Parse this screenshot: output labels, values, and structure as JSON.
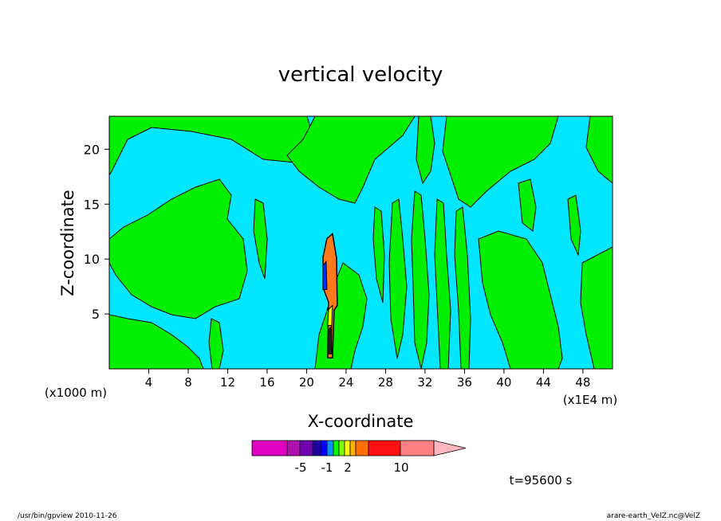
{
  "chart_data": {
    "type": "heatmap",
    "title": "vertical velocity",
    "xlabel": "X-coordinate",
    "ylabel": "Z-coordinate",
    "x_unit_left": "(x1000 m)",
    "x_unit_right": "(x1E4 m)",
    "xlim": [
      0,
      51
    ],
    "ylim": [
      0,
      23
    ],
    "xticks": [
      4,
      8,
      12,
      16,
      20,
      24,
      28,
      32,
      36,
      40,
      44,
      48
    ],
    "yticks": [
      5,
      10,
      15,
      20
    ],
    "updraft_core": {
      "x": 22.3,
      "z_bottom": 1,
      "z_top": 12.3
    },
    "colorbar": {
      "levels": [
        -10,
        -7,
        -5,
        -4,
        -3,
        -2,
        -1,
        -0.5,
        0,
        0.5,
        1,
        2,
        4,
        7,
        10,
        13,
        17
      ],
      "tick_labels": [
        "-5",
        "-1",
        "2",
        "10"
      ],
      "tick_values": [
        -5,
        -1,
        2,
        10
      ],
      "colors": [
        "#e000c0",
        "#b010b0",
        "#7000b0",
        "#2000a0",
        "#0000ff",
        "#0090ff",
        "#00ff00",
        "#80ff00",
        "#ffff00",
        "#ffb000",
        "#ff7000",
        "#ff1010",
        "#ff8080",
        "#ffb6c1"
      ]
    },
    "background_colors": {
      "weak_down": "#00e6ff",
      "weak_up": "#00f000",
      "core": "#ff7a1a"
    },
    "grid": false
  },
  "annotations": {
    "time_label": "t=95600 s",
    "footer_left": "/usr/bin/gpview   2010-11-26",
    "footer_right": "arare-earth_VelZ.nc@VelZ"
  }
}
